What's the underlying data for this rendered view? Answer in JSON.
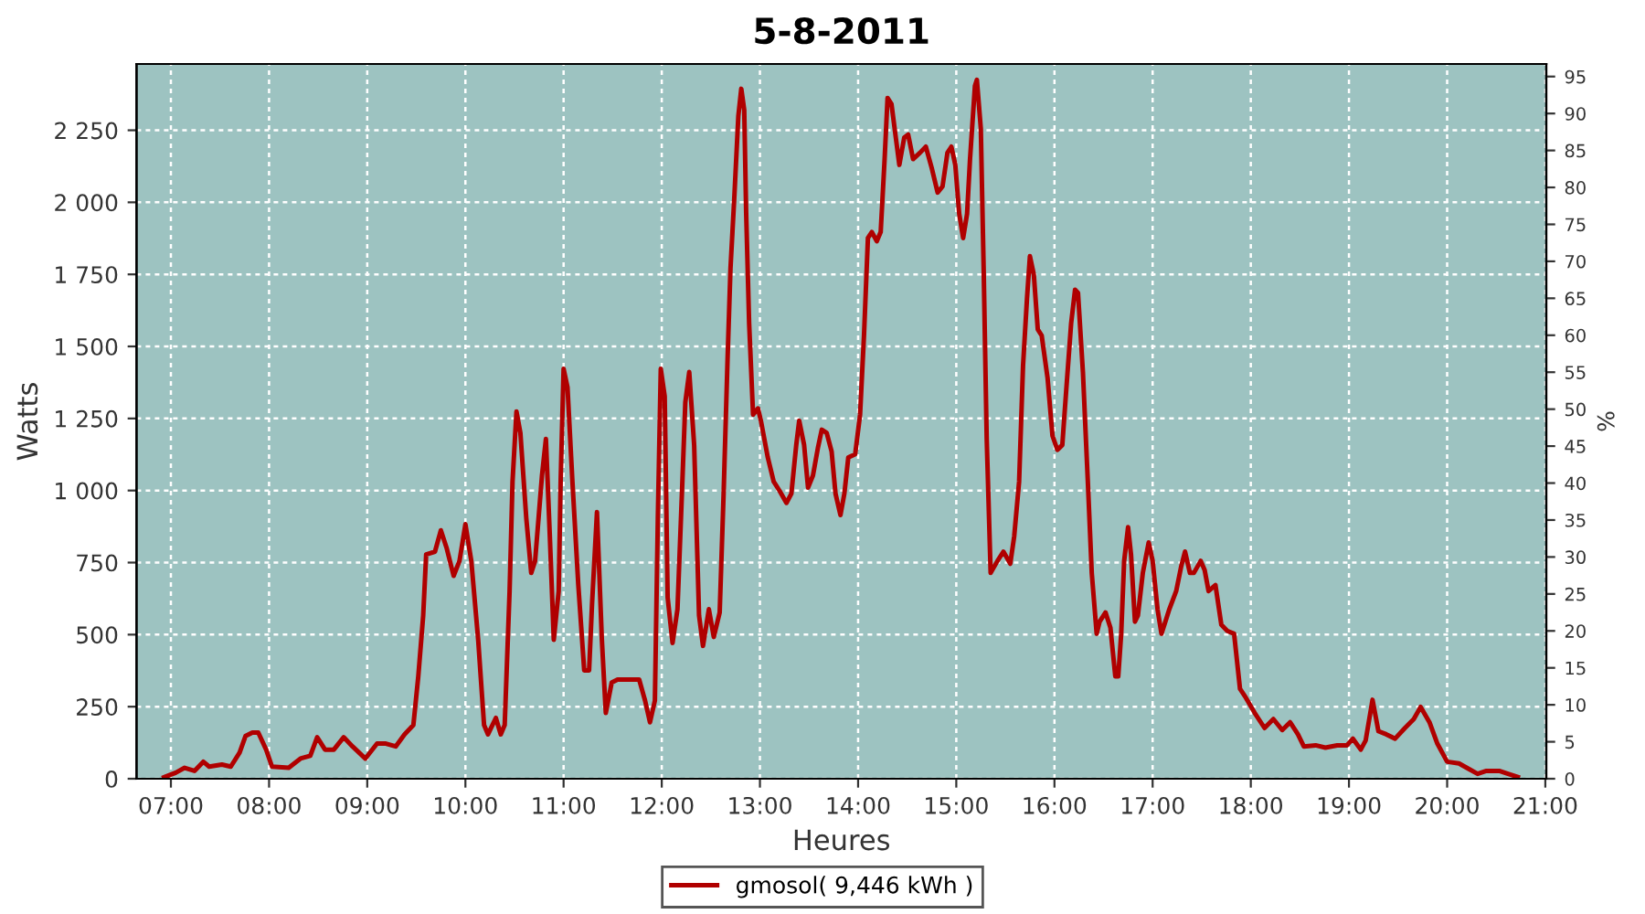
{
  "chart_data": {
    "type": "line",
    "title": "5-8-2011",
    "xlabel": "Heures",
    "ylabel": "Watts",
    "y2label": "%",
    "xlim": [
      6.65,
      21.01
    ],
    "xticks": [
      {
        "value": 7,
        "label": "07:00"
      },
      {
        "value": 8,
        "label": "08:00"
      },
      {
        "value": 9,
        "label": "09:00"
      },
      {
        "value": 10,
        "label": "10:00"
      },
      {
        "value": 11,
        "label": "11:00"
      },
      {
        "value": 12,
        "label": "12:00"
      },
      {
        "value": 13,
        "label": "13:00"
      },
      {
        "value": 14,
        "label": "14:00"
      },
      {
        "value": 15,
        "label": "15:00"
      },
      {
        "value": 16,
        "label": "16:00"
      },
      {
        "value": 17,
        "label": "17:00"
      },
      {
        "value": 18,
        "label": "18:00"
      },
      {
        "value": 19,
        "label": "19:00"
      },
      {
        "value": 20,
        "label": "20:00"
      },
      {
        "value": 21,
        "label": "21:00"
      }
    ],
    "ylim": [
      0,
      2480
    ],
    "yticks": [
      0,
      250,
      500,
      750,
      {
        "value": 1000,
        "label": "1 000"
      },
      {
        "value": 1250,
        "label": "1 250"
      },
      {
        "value": 1500,
        "label": "1 500"
      },
      {
        "value": 1750,
        "label": "1 750"
      },
      {
        "value": 2000,
        "label": "2 000"
      },
      {
        "value": 2250,
        "label": "2 250"
      }
    ],
    "y2lim": [
      0,
      96.7
    ],
    "y2ticks": [
      0,
      5,
      10,
      15,
      20,
      25,
      30,
      35,
      40,
      45,
      50,
      55,
      60,
      65,
      70,
      75,
      80,
      85,
      90,
      95
    ],
    "grid": true,
    "legend": "bottom",
    "marker": "none",
    "line_style": "solid",
    "series": [
      {
        "name": "gmosol( 9,446 kWh )",
        "color": "#b00000",
        "x": [
          6.93,
          7.05,
          7.14,
          7.24,
          7.33,
          7.39,
          7.52,
          7.61,
          7.7,
          7.76,
          7.83,
          7.89,
          7.97,
          8.03,
          8.2,
          8.32,
          8.42,
          8.49,
          8.57,
          8.66,
          8.76,
          8.85,
          8.98,
          9.1,
          9.19,
          9.29,
          9.38,
          9.47,
          9.52,
          9.57,
          9.6,
          9.69,
          9.75,
          9.81,
          9.88,
          9.94,
          10.0,
          10.06,
          10.13,
          10.19,
          10.23,
          10.31,
          10.36,
          10.4,
          10.45,
          10.48,
          10.52,
          10.56,
          10.62,
          10.67,
          10.71,
          10.78,
          10.82,
          10.86,
          10.9,
          10.95,
          10.97,
          11.0,
          11.04,
          11.09,
          11.15,
          11.21,
          11.26,
          11.29,
          11.34,
          11.39,
          11.43,
          11.49,
          11.55,
          11.77,
          11.83,
          11.88,
          11.93,
          11.96,
          11.99,
          12.03,
          12.06,
          12.11,
          12.16,
          12.21,
          12.24,
          12.28,
          12.33,
          12.38,
          12.42,
          12.48,
          12.53,
          12.59,
          12.63,
          12.67,
          12.7,
          12.74,
          12.78,
          12.81,
          12.84,
          12.86,
          12.89,
          12.93,
          12.98,
          13.01,
          13.08,
          13.14,
          13.2,
          13.27,
          13.32,
          13.37,
          13.4,
          13.45,
          13.49,
          13.54,
          13.59,
          13.63,
          13.68,
          13.73,
          13.77,
          13.82,
          13.86,
          13.9,
          13.97,
          14.02,
          14.06,
          14.1,
          14.14,
          14.19,
          14.23,
          14.27,
          14.3,
          14.34,
          14.38,
          14.42,
          14.47,
          14.51,
          14.56,
          14.63,
          14.69,
          14.75,
          14.81,
          14.86,
          14.91,
          14.95,
          14.99,
          15.03,
          15.07,
          15.11,
          15.14,
          15.19,
          15.21,
          15.25,
          15.28,
          15.31,
          15.35,
          15.42,
          15.48,
          15.55,
          15.59,
          15.64,
          15.68,
          15.72,
          15.75,
          15.79,
          15.83,
          15.87,
          15.93,
          15.98,
          16.03,
          16.08,
          16.12,
          16.17,
          16.21,
          16.24,
          16.29,
          16.34,
          16.38,
          16.43,
          16.46,
          16.52,
          16.57,
          16.62,
          16.65,
          16.68,
          16.71,
          16.75,
          16.78,
          16.82,
          16.85,
          16.9,
          16.96,
          17.0,
          17.05,
          17.09,
          17.14,
          17.17,
          17.24,
          17.29,
          17.33,
          17.38,
          17.42,
          17.49,
          17.53,
          17.57,
          17.64,
          17.7,
          17.76,
          17.83,
          17.89,
          17.95,
          18.04,
          18.14,
          18.23,
          18.32,
          18.4,
          18.48,
          18.54,
          18.66,
          18.76,
          18.88,
          18.98,
          19.04,
          19.12,
          19.17,
          19.24,
          19.3,
          19.38,
          19.47,
          19.57,
          19.66,
          19.73,
          19.82,
          19.9,
          20.0,
          20.12,
          20.22,
          20.31,
          20.4,
          20.53,
          20.62,
          20.72
        ],
        "values": [
          5,
          21,
          38,
          27,
          59,
          42,
          49,
          42,
          91,
          148,
          160,
          160,
          101,
          42,
          38,
          70,
          80,
          144,
          101,
          101,
          144,
          112,
          70,
          122,
          122,
          112,
          154,
          186,
          355,
          566,
          778,
          788,
          862,
          799,
          704,
          756,
          883,
          756,
          482,
          186,
          154,
          211,
          154,
          186,
          651,
          1031,
          1274,
          1200,
          904,
          714,
          756,
          1052,
          1179,
          841,
          482,
          651,
          1031,
          1422,
          1358,
          1031,
          672,
          376,
          376,
          608,
          925,
          482,
          228,
          334,
          344,
          344,
          271,
          196,
          271,
          904,
          1422,
          1327,
          629,
          471,
          588,
          1031,
          1306,
          1411,
          1158,
          566,
          461,
          588,
          492,
          577,
          989,
          1453,
          1770,
          2024,
          2299,
          2394,
          2320,
          1960,
          1580,
          1263,
          1285,
          1242,
          1115,
          1031,
          999,
          957,
          989,
          1158,
          1242,
          1158,
          1010,
          1052,
          1147,
          1211,
          1200,
          1136,
          989,
          915,
          989,
          1115,
          1126,
          1263,
          1538,
          1876,
          1897,
          1865,
          1897,
          2150,
          2362,
          2341,
          2235,
          2130,
          2225,
          2235,
          2150,
          2172,
          2193,
          2119,
          2034,
          2055,
          2172,
          2193,
          2130,
          1960,
          1876,
          1960,
          2150,
          2404,
          2425,
          2256,
          1749,
          1179,
          714,
          756,
          788,
          746,
          841,
          1031,
          1433,
          1665,
          1813,
          1749,
          1559,
          1538,
          1390,
          1190,
          1141,
          1158,
          1348,
          1580,
          1697,
          1686,
          1411,
          1031,
          714,
          503,
          545,
          577,
          524,
          355,
          355,
          503,
          756,
          873,
          778,
          545,
          566,
          714,
          820,
          756,
          588,
          503,
          556,
          588,
          651,
          735,
          788,
          714,
          714,
          756,
          724,
          651,
          672,
          534,
          513,
          503,
          312,
          281,
          228,
          176,
          207,
          169,
          196,
          154,
          112,
          116,
          108,
          116,
          116,
          139,
          101,
          133,
          274,
          165,
          154,
          139,
          176,
          207,
          249,
          196,
          122,
          59,
          53,
          34,
          17,
          27,
          27,
          17,
          6
        ]
      }
    ]
  }
}
